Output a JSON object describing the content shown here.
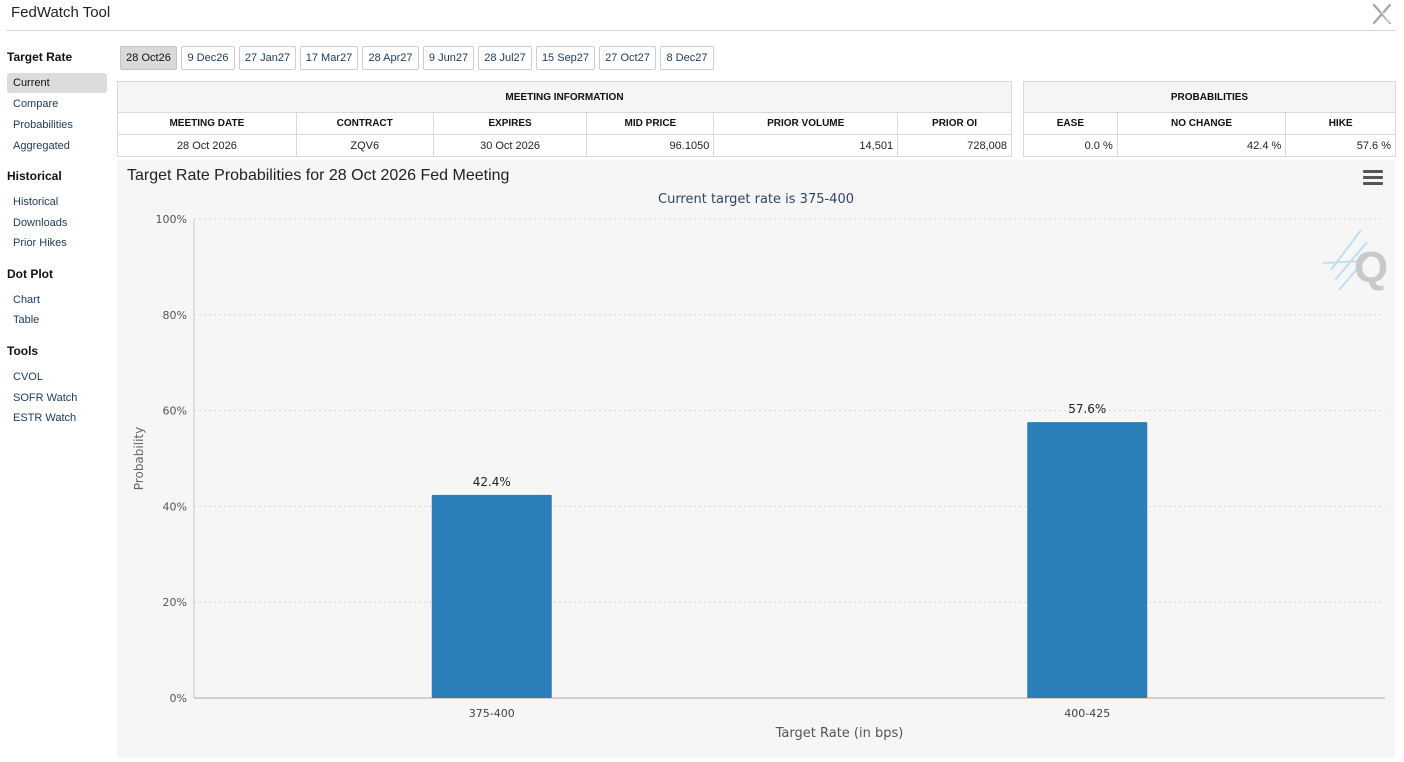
{
  "app": {
    "title": "FedWatch Tool",
    "close_icon": "x-close-icon"
  },
  "sidebar": {
    "sections": [
      {
        "title": "Target Rate",
        "items": [
          {
            "label": "Current",
            "active": true
          },
          {
            "label": "Compare",
            "active": false
          },
          {
            "label": "Probabilities",
            "active": false
          },
          {
            "label": "Aggregated",
            "active": false
          }
        ]
      },
      {
        "title": "Historical",
        "items": [
          {
            "label": "Historical",
            "active": false
          },
          {
            "label": "Downloads",
            "active": false
          },
          {
            "label": "Prior Hikes",
            "active": false
          }
        ]
      },
      {
        "title": "Dot Plot",
        "items": [
          {
            "label": "Chart",
            "active": false
          },
          {
            "label": "Table",
            "active": false
          }
        ]
      },
      {
        "title": "Tools",
        "items": [
          {
            "label": "CVOL",
            "active": false
          },
          {
            "label": "SOFR Watch",
            "active": false
          },
          {
            "label": "ESTR Watch",
            "active": false
          }
        ]
      }
    ]
  },
  "tabs": [
    {
      "label": "28 Oct26",
      "active": true
    },
    {
      "label": "9 Dec26",
      "active": false
    },
    {
      "label": "27 Jan27",
      "active": false
    },
    {
      "label": "17 Mar27",
      "active": false
    },
    {
      "label": "28 Apr27",
      "active": false
    },
    {
      "label": "9 Jun27",
      "active": false
    },
    {
      "label": "28 Jul27",
      "active": false
    },
    {
      "label": "15 Sep27",
      "active": false
    },
    {
      "label": "27 Oct27",
      "active": false
    },
    {
      "label": "8 Dec27",
      "active": false
    }
  ],
  "meeting_info": {
    "title": "MEETING INFORMATION",
    "headers": {
      "meeting_date": "MEETING DATE",
      "contract": "CONTRACT",
      "expires": "EXPIRES",
      "mid_price": "MID PRICE",
      "prior_volume": "PRIOR VOLUME",
      "prior_oi": "PRIOR OI"
    },
    "row": {
      "meeting_date": "28 Oct 2026",
      "contract": "ZQV6",
      "expires": "30 Oct 2026",
      "mid_price": "96.1050",
      "prior_volume": "14,501",
      "prior_oi": "728,008"
    }
  },
  "probabilities": {
    "title": "PROBABILITIES",
    "headers": {
      "ease": "EASE",
      "no_change": "NO CHANGE",
      "hike": "HIKE"
    },
    "row": {
      "ease": "0.0 %",
      "no_change": "42.4 %",
      "hike": "57.6 %"
    }
  },
  "chart": {
    "title": "Target Rate Probabilities for 28 Oct 2026 Fed Meeting",
    "subtitle": "Current target rate is 375-400",
    "menu_icon": "hamburger-menu-icon",
    "watermark_icon": "q-logo-icon"
  },
  "chart_data": {
    "type": "bar",
    "categories": [
      "375-400",
      "400-425"
    ],
    "values": [
      42.4,
      57.6
    ],
    "data_labels": [
      "42.4%",
      "57.6%"
    ],
    "title": "Target Rate Probabilities for 28 Oct 2026 Fed Meeting",
    "subtitle": "Current target rate is 375-400",
    "xlabel": "Target Rate (in bps)",
    "ylabel": "Probability",
    "ylim": [
      0,
      100
    ],
    "yticks": [
      0,
      20,
      40,
      60,
      80,
      100
    ],
    "ytick_labels": [
      "0%",
      "20%",
      "40%",
      "60%",
      "80%",
      "100%"
    ],
    "grid": "horizontal dotted",
    "bar_color": "#2b7fb8"
  }
}
